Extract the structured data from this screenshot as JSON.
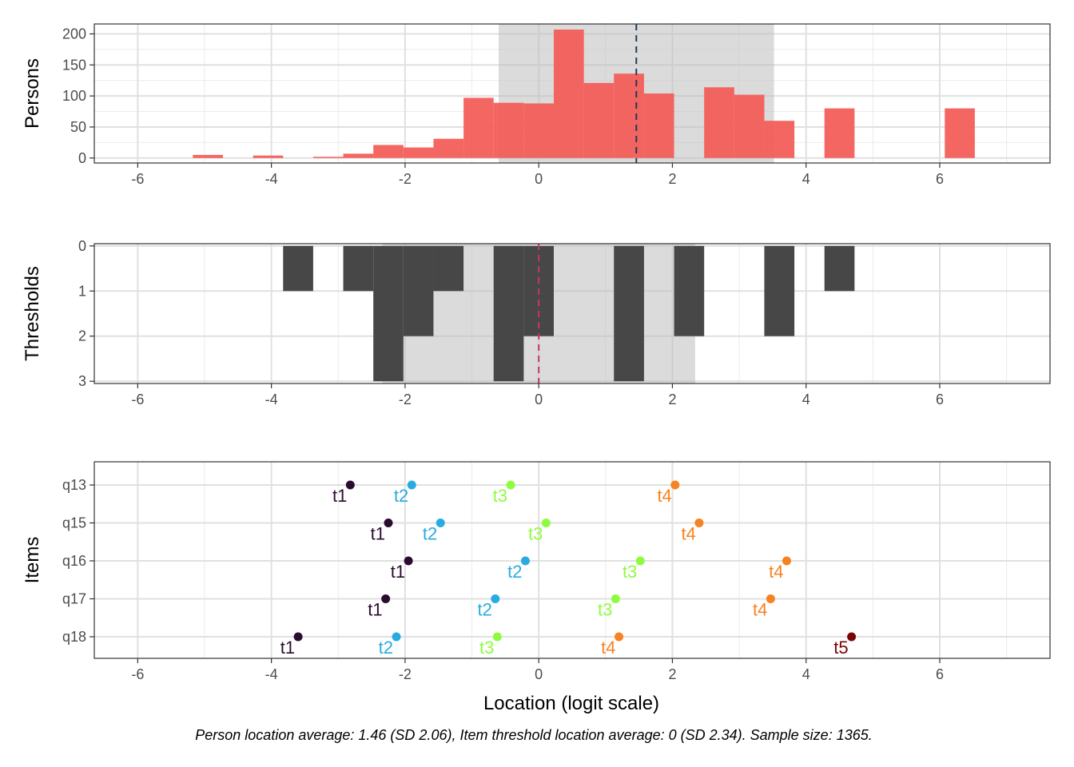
{
  "chart_data": [
    {
      "type": "bar",
      "title": "",
      "xlabel": "",
      "ylabel": "Persons",
      "xlim": [
        -6.65,
        7.65
      ],
      "ylim": [
        -8,
        216
      ],
      "x_ticks": [
        -6,
        -4,
        -2,
        0,
        2,
        4,
        6
      ],
      "y_ticks": [
        0,
        50,
        100,
        150,
        200
      ],
      "grid": true,
      "shaded_range": [
        -0.6,
        3.52
      ],
      "mean_line": 1.46,
      "colors": {
        "bar": "#f35e5a",
        "shade": "#bdbdbd",
        "mean_line": "#1f3a5a"
      },
      "bin_width": 0.45,
      "bins": [
        {
          "x": -4.95,
          "count": 5
        },
        {
          "x": -4.05,
          "count": 4
        },
        {
          "x": -3.15,
          "count": 2
        },
        {
          "x": -2.7,
          "count": 7
        },
        {
          "x": -2.25,
          "count": 21
        },
        {
          "x": -1.8,
          "count": 17
        },
        {
          "x": -1.35,
          "count": 31
        },
        {
          "x": -0.9,
          "count": 97
        },
        {
          "x": -0.45,
          "count": 89
        },
        {
          "x": 0.0,
          "count": 88
        },
        {
          "x": 0.45,
          "count": 207
        },
        {
          "x": 0.9,
          "count": 121
        },
        {
          "x": 1.35,
          "count": 136
        },
        {
          "x": 1.8,
          "count": 104
        },
        {
          "x": 2.7,
          "count": 114
        },
        {
          "x": 3.15,
          "count": 102
        },
        {
          "x": 3.6,
          "count": 60
        },
        {
          "x": 4.5,
          "count": 80
        },
        {
          "x": 6.3,
          "count": 80
        }
      ]
    },
    {
      "type": "bar",
      "title": "",
      "xlabel": "",
      "ylabel": "Thresholds",
      "xlim": [
        -6.65,
        7.65
      ],
      "ylim": [
        3.05,
        -0.05
      ],
      "x_ticks": [
        -6,
        -4,
        -2,
        0,
        2,
        4,
        6
      ],
      "y_ticks": [
        0,
        1,
        2,
        3
      ],
      "grid": true,
      "shaded_range": [
        -2.34,
        2.34
      ],
      "mean_line": 0,
      "colors": {
        "bar": "#474747",
        "shade": "#bdbdbd",
        "mean_line": "#cc3366"
      },
      "bin_width": 0.45,
      "bins": [
        {
          "x": -3.6,
          "count": 1
        },
        {
          "x": -2.7,
          "count": 1
        },
        {
          "x": -2.25,
          "count": 3
        },
        {
          "x": -1.8,
          "count": 2
        },
        {
          "x": -1.35,
          "count": 1
        },
        {
          "x": -0.45,
          "count": 3
        },
        {
          "x": 0.0,
          "count": 2
        },
        {
          "x": 1.35,
          "count": 3
        },
        {
          "x": 2.25,
          "count": 2
        },
        {
          "x": 3.6,
          "count": 2
        },
        {
          "x": 4.5,
          "count": 1
        }
      ]
    },
    {
      "type": "scatter",
      "title": "",
      "xlabel": "Location (logit scale)",
      "ylabel": "Items",
      "xlim": [
        -6.65,
        7.65
      ],
      "x_ticks": [
        -6,
        -4,
        -2,
        0,
        2,
        4,
        6
      ],
      "categories": [
        "q13",
        "q15",
        "q16",
        "q17",
        "q18"
      ],
      "grid": true,
      "threshold_colors": {
        "t1": "#2b0b30",
        "t2": "#29abe2",
        "t3": "#8efc3e",
        "t4": "#f7821f",
        "t5": "#7a0403"
      },
      "points": [
        {
          "item": "q13",
          "threshold": "t1",
          "x": -2.82
        },
        {
          "item": "q13",
          "threshold": "t2",
          "x": -1.9
        },
        {
          "item": "q13",
          "threshold": "t3",
          "x": -0.42
        },
        {
          "item": "q13",
          "threshold": "t4",
          "x": 2.04
        },
        {
          "item": "q15",
          "threshold": "t1",
          "x": -2.25
        },
        {
          "item": "q15",
          "threshold": "t2",
          "x": -1.47
        },
        {
          "item": "q15",
          "threshold": "t3",
          "x": 0.11
        },
        {
          "item": "q15",
          "threshold": "t4",
          "x": 2.4
        },
        {
          "item": "q16",
          "threshold": "t1",
          "x": -1.95
        },
        {
          "item": "q16",
          "threshold": "t2",
          "x": -0.2
        },
        {
          "item": "q16",
          "threshold": "t3",
          "x": 1.52
        },
        {
          "item": "q16",
          "threshold": "t4",
          "x": 3.71
        },
        {
          "item": "q17",
          "threshold": "t1",
          "x": -2.29
        },
        {
          "item": "q17",
          "threshold": "t2",
          "x": -0.65
        },
        {
          "item": "q17",
          "threshold": "t3",
          "x": 1.15
        },
        {
          "item": "q17",
          "threshold": "t4",
          "x": 3.47
        },
        {
          "item": "q18",
          "threshold": "t1",
          "x": -3.6
        },
        {
          "item": "q18",
          "threshold": "t2",
          "x": -2.13
        },
        {
          "item": "q18",
          "threshold": "t3",
          "x": -0.62
        },
        {
          "item": "q18",
          "threshold": "t4",
          "x": 1.2
        },
        {
          "item": "q18",
          "threshold": "t5",
          "x": 4.68
        }
      ]
    }
  ],
  "caption": "Person location average: 1.46 (SD 2.06), Item threshold location average: 0 (SD 2.34). Sample size: 1365."
}
